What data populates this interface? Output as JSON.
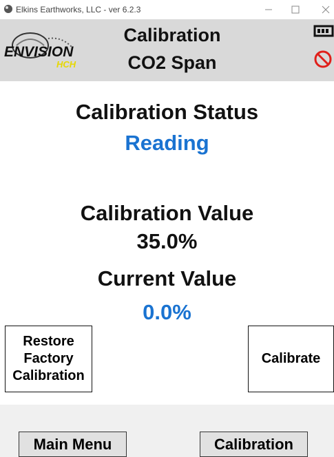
{
  "window": {
    "title": "Elkins Earthworks, LLC - ver 6.2.3"
  },
  "header": {
    "logo": {
      "brand": "ENVISION",
      "sub": "HCH"
    },
    "title": "Calibration",
    "subtitle": "CO2 Span"
  },
  "status": {
    "label": "Calibration Status",
    "value": "Reading"
  },
  "calibration_value": {
    "label": "Calibration Value",
    "value": "35.0%"
  },
  "current_value": {
    "label": "Current Value",
    "value": "0.0%"
  },
  "buttons": {
    "restore": [
      "Restore",
      "Factory",
      "Calibration"
    ],
    "calibrate": "Calibrate",
    "main_menu": "Main Menu",
    "calibration": "Calibration"
  }
}
